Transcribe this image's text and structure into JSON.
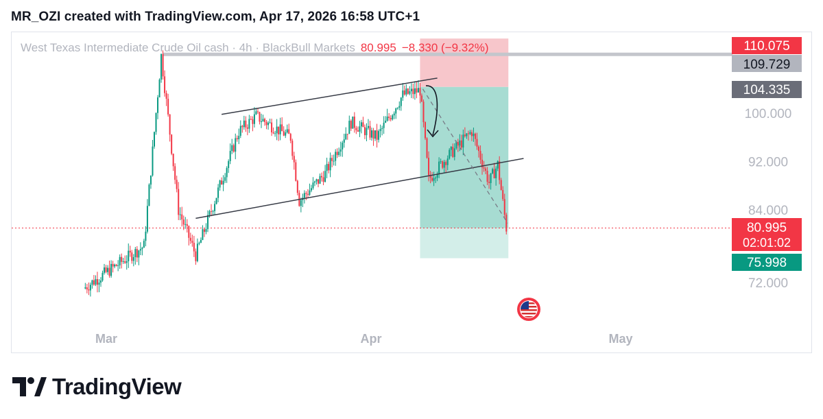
{
  "header": {
    "author_line": "MR_OZI created with TradingView.com, Apr 17, 2026 16:58 UTC+1"
  },
  "legend": {
    "symbol": "West Texas Intermediate Crude Oil cash · 4h · BlackBull Markets",
    "last_price": "80.995",
    "change": "−8.330 (−9.32%)"
  },
  "colors": {
    "up": "#089981",
    "down": "#f23645",
    "stop_zone": "#f7c6cb",
    "target_zone": "#a7dcd2",
    "target_zone_light": "#d3eee9",
    "trend_line": "#363a45",
    "resistance": "#c4c6cc"
  },
  "price_labels": {
    "stop": "110.075",
    "resistance": "109.729",
    "entry": "104.335",
    "current": "80.995",
    "countdown": "02:01:02",
    "target": "75.998"
  },
  "chart_data": {
    "type": "candlestick",
    "title": "West Texas Intermediate Crude Oil cash · 4h · BlackBull Markets",
    "x_ticks": [
      "Mar",
      "Apr",
      "May"
    ],
    "y_ticks": [
      "100.000",
      "92.000",
      "84.000",
      "72.000"
    ],
    "ylim": [
      68.5,
      113.5
    ],
    "key_points": [
      {
        "date": "2026-02-27",
        "price": 71.0
      },
      {
        "date": "2026-03-06",
        "price": 78.0
      },
      {
        "date": "2026-03-08",
        "price": 109.5
      },
      {
        "date": "2026-03-10",
        "price": 84.0
      },
      {
        "date": "2026-03-12",
        "price": 76.5
      },
      {
        "date": "2026-03-17",
        "price": 97.0
      },
      {
        "date": "2026-03-19",
        "price": 99.5
      },
      {
        "date": "2026-03-23",
        "price": 96.0
      },
      {
        "date": "2026-03-24",
        "price": 85.5
      },
      {
        "date": "2026-03-27",
        "price": 90.0
      },
      {
        "date": "2026-03-30",
        "price": 98.5
      },
      {
        "date": "2026-04-02",
        "price": 96.0
      },
      {
        "date": "2026-04-05",
        "price": 103.0
      },
      {
        "date": "2026-04-07",
        "price": 103.8
      },
      {
        "date": "2026-04-08",
        "price": 89.0
      },
      {
        "date": "2026-04-10",
        "price": 92.5
      },
      {
        "date": "2026-04-13",
        "price": 97.0
      },
      {
        "date": "2026-04-15",
        "price": 88.5
      },
      {
        "date": "2026-04-16",
        "price": 91.5
      },
      {
        "date": "2026-04-17",
        "price": 80.995
      }
    ],
    "drawings": {
      "upper_channel": [
        {
          "date": "2026-03-15",
          "price": 99.8
        },
        {
          "date": "2026-04-09",
          "price": 105.8
        }
      ],
      "lower_channel": [
        {
          "date": "2026-03-12",
          "price": 82.6
        },
        {
          "date": "2026-04-19",
          "price": 92.5
        }
      ],
      "resistance": 109.729,
      "position_short": {
        "entry": 104.335,
        "stop": 110.075,
        "target": 75.998,
        "start": "2026-04-07",
        "end": "2026-04-17"
      }
    },
    "grid": false,
    "legend_position": "top-left"
  }
}
